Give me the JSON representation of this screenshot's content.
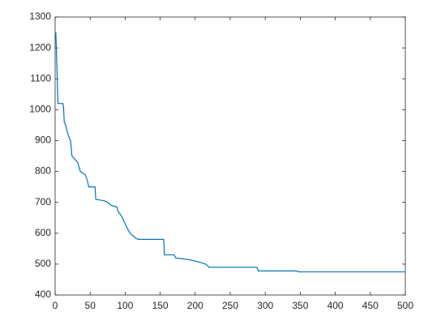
{
  "chart_data": {
    "type": "line",
    "x": [
      1,
      2,
      3,
      4,
      11,
      12,
      13,
      15,
      17,
      20,
      22,
      24,
      28,
      32,
      36,
      43,
      46,
      48,
      57,
      58,
      70,
      75,
      80,
      88,
      90,
      95,
      98,
      102,
      107,
      112,
      118,
      155,
      156,
      170,
      172,
      190,
      200,
      208,
      215,
      220,
      288,
      290,
      345,
      348,
      500
    ],
    "series": [
      {
        "color": "#0072bd",
        "values": [
          1250,
          1180,
          1100,
          1020,
          1020,
          1010,
          960,
          950,
          930,
          910,
          900,
          850,
          840,
          830,
          800,
          790,
          770,
          750,
          750,
          710,
          705,
          700,
          690,
          685,
          670,
          655,
          640,
          620,
          600,
          590,
          580,
          580,
          530,
          530,
          520,
          515,
          510,
          505,
          500,
          490,
          490,
          478,
          478,
          475,
          475
        ]
      }
    ],
    "xlim": [
      0,
      500
    ],
    "xticks": [
      0,
      50,
      100,
      150,
      200,
      250,
      300,
      350,
      400,
      450,
      500
    ],
    "ylim": [
      400,
      1300
    ],
    "yticks": [
      400,
      500,
      600,
      700,
      800,
      900,
      1000,
      1100,
      1200,
      1300
    ]
  }
}
